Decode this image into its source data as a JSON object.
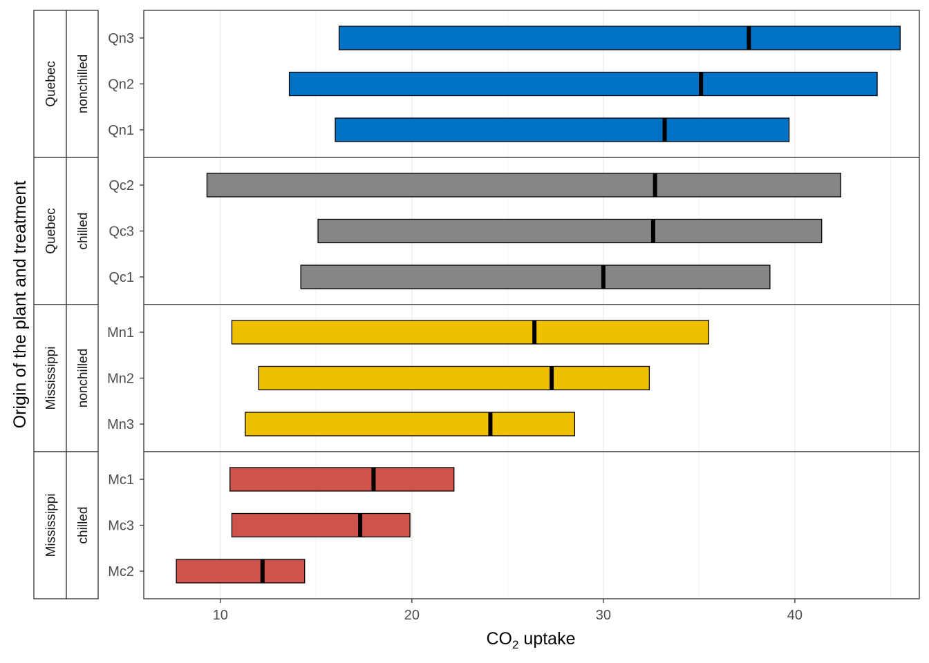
{
  "chart_data": {
    "type": "bar",
    "subtype": "faceted floating range bars with median marker",
    "xlabel": "CO₂ uptake",
    "ylabel": "Origin of the plant and treatment",
    "xlim": [
      6.0,
      46.5
    ],
    "x_ticks": [
      10,
      20,
      30,
      40
    ],
    "grid": "on",
    "legend": "none",
    "facets": [
      {
        "origin": "Quebec",
        "treatment": "nonchilled",
        "color": "#0072C6",
        "plants": [
          {
            "name": "Qn3",
            "min": 16.2,
            "median": 37.6,
            "max": 45.5
          },
          {
            "name": "Qn2",
            "min": 13.6,
            "median": 35.1,
            "max": 44.3
          },
          {
            "name": "Qn1",
            "min": 16.0,
            "median": 33.2,
            "max": 39.7
          }
        ]
      },
      {
        "origin": "Quebec",
        "treatment": "chilled",
        "color": "#868686",
        "plants": [
          {
            "name": "Qc2",
            "min": 9.3,
            "median": 32.7,
            "max": 42.4
          },
          {
            "name": "Qc3",
            "min": 15.1,
            "median": 32.6,
            "max": 41.4
          },
          {
            "name": "Qc1",
            "min": 14.2,
            "median": 30.0,
            "max": 38.7
          }
        ]
      },
      {
        "origin": "Mississippi",
        "treatment": "nonchilled",
        "color": "#EFC000",
        "plants": [
          {
            "name": "Mn1",
            "min": 10.6,
            "median": 26.4,
            "max": 35.5
          },
          {
            "name": "Mn2",
            "min": 12.0,
            "median": 27.3,
            "max": 32.4
          },
          {
            "name": "Mn3",
            "min": 11.3,
            "median": 24.1,
            "max": 28.5
          }
        ]
      },
      {
        "origin": "Mississippi",
        "treatment": "chilled",
        "color": "#CD534C",
        "plants": [
          {
            "name": "Mc1",
            "min": 10.5,
            "median": 18.0,
            "max": 22.2
          },
          {
            "name": "Mc3",
            "min": 10.6,
            "median": 17.3,
            "max": 19.9
          },
          {
            "name": "Mc2",
            "min": 7.7,
            "median": 12.2,
            "max": 14.4
          }
        ]
      }
    ]
  }
}
